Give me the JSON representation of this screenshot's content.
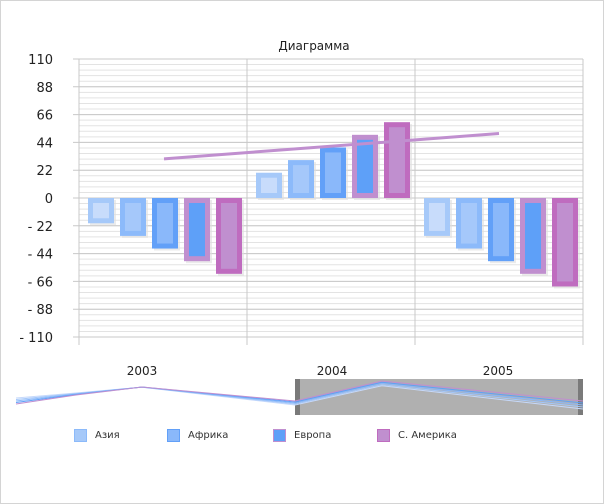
{
  "chart_data": {
    "type": "bar",
    "title": "Диаграмма",
    "categories": [
      "2003",
      "2004",
      "2005"
    ],
    "ylim": [
      -110,
      110
    ],
    "yticks": [
      "110",
      "88",
      "66",
      "44",
      "22",
      "0",
      "- 22",
      "- 44",
      "- 66",
      "- 88",
      "- 110"
    ],
    "ytick_values": [
      110,
      88,
      66,
      44,
      22,
      0,
      -22,
      -44,
      -66,
      -88,
      -110
    ],
    "grid": true,
    "series": [
      {
        "values": [
          -20,
          20,
          -30
        ],
        "fill": "#c8dcfb",
        "border": "#a6c9f9"
      },
      {
        "values": [
          -30,
          30,
          -40
        ],
        "fill": "#a5c8fa",
        "border": "#8cbafa"
      },
      {
        "values": [
          -40,
          40,
          -50
        ],
        "fill": "#8ab8fa",
        "border": "#62a0f8"
      },
      {
        "values": [
          -50,
          50,
          -60
        ],
        "fill": "#5ea0f8",
        "border": "#c08fcf"
      },
      {
        "values": [
          -60,
          60,
          -70
        ],
        "fill": "#c08fcf",
        "border": "#bf6cbf"
      }
    ],
    "trendline": {
      "from": 31,
      "to": 51,
      "color": "#c08fcf"
    },
    "legend": {
      "position": "bottom",
      "items": [
        {
          "name": "Азия",
          "fill": "#a6c9f9",
          "border": "#8cbafa"
        },
        {
          "name": "Африка",
          "fill": "#8ab8fa",
          "border": "#62a0f8"
        },
        {
          "name": "Европа",
          "fill": "#5ea0f8",
          "border": "#c08fcf"
        },
        {
          "name": "С. Америка",
          "fill": "#c08fcf",
          "border": "#bf6cbf"
        }
      ]
    },
    "navigator": {
      "labels": [
        "2003",
        "2004",
        "2005"
      ],
      "selected_range": [
        "2004",
        "2005"
      ]
    }
  }
}
